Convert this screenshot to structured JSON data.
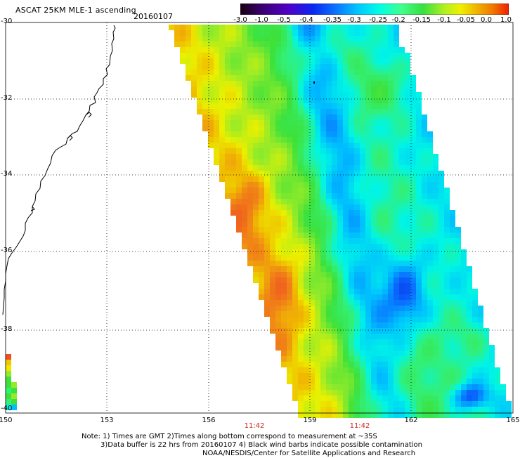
{
  "header": {
    "title": "ASCAT 25KM MLE-1 ascending",
    "date": "20160107"
  },
  "colorbar": {
    "labels": [
      "-3.0",
      "-1.0",
      "-0.5",
      "-0.4",
      "-0.35",
      "-0.3",
      "-0.25",
      "-0.2",
      "-0.15",
      "-0.1",
      "-0.05",
      "0.0",
      "1.0"
    ],
    "colors": [
      "#2a0018",
      "#5a00a0",
      "#1030e0",
      "#0a78ff",
      "#00c8ff",
      "#00ffe8",
      "#40ff8c",
      "#30e040",
      "#a0f020",
      "#f0f000",
      "#f0b400",
      "#f07800",
      "#f02800"
    ]
  },
  "map": {
    "lat_labels": [
      "-30",
      "-32",
      "-34",
      "-36",
      "-38",
      "-40"
    ],
    "lon_labels": [
      "150",
      "153",
      "156",
      "159",
      "162",
      "165"
    ],
    "time_labels": [
      "11:42",
      "11:42"
    ],
    "time_color": "#c8281e"
  },
  "notes": {
    "line1": "Note: 1) Times are GMT 2)Times along bottom correspond to measurement at ~35S",
    "line2": "3)Data buffer is 22 hrs from 20160107 4) Black wind barbs indicate possible contamination",
    "line3": "NOAA/NESDIS/Center for Satellite Applications and Research"
  }
}
